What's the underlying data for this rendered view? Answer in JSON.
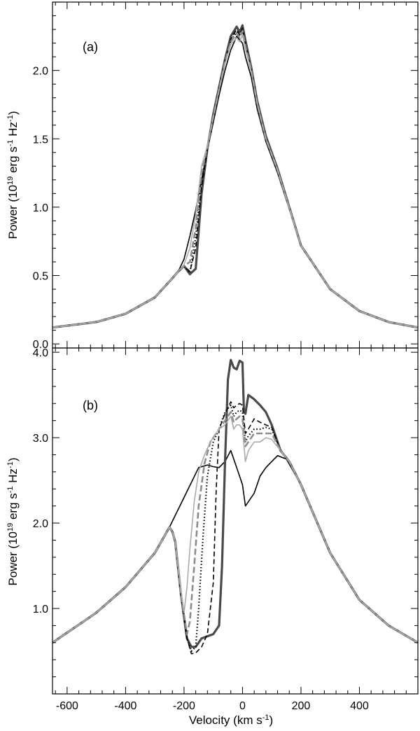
{
  "figure": {
    "xlabel_parts": {
      "main": "Velocity (km s",
      "sup": "-1",
      "end": ")"
    },
    "ylabel_parts": {
      "main": "Power (10",
      "sup1": "19",
      "mid": " erg s",
      "sup2": "-1",
      "mid2": " Hz",
      "sup3": "-1",
      "end": ")"
    }
  },
  "chart_data": [
    {
      "type": "line",
      "panel_label": "(a)",
      "xlabel": "",
      "ylabel": "Power (10^19 erg s^-1 Hz^-1)",
      "xlim": [
        -650,
        600
      ],
      "ylim": [
        -0.03,
        2.5
      ],
      "xticks": [
        -600,
        -400,
        -200,
        0,
        200,
        400
      ],
      "yticks": [
        0.0,
        0.5,
        1.0,
        1.5,
        2.0
      ],
      "ytick_labels": [
        "0.0",
        "0.5",
        "1.0",
        "1.5",
        "2.0"
      ],
      "grid": false,
      "series": [
        {
          "style": "thin-black",
          "x": [
            -650,
            -500,
            -400,
            -300,
            -240,
            -220,
            -200,
            -180,
            -160,
            -140,
            -120,
            -100,
            -80,
            -60,
            -40,
            -20,
            0,
            10,
            30,
            50,
            80,
            120,
            200,
            300,
            400,
            500,
            600
          ],
          "y": [
            0.12,
            0.16,
            0.22,
            0.34,
            0.48,
            0.53,
            0.62,
            0.79,
            0.98,
            1.2,
            1.42,
            1.62,
            1.82,
            2.0,
            2.15,
            2.25,
            2.2,
            2.1,
            1.95,
            1.72,
            1.48,
            1.25,
            0.72,
            0.4,
            0.24,
            0.16,
            0.12
          ]
        },
        {
          "style": "thick-dark-gray",
          "x": [
            -650,
            -500,
            -400,
            -300,
            -240,
            -220,
            -200,
            -180,
            -160,
            -140,
            -120,
            -100,
            -80,
            -60,
            -40,
            -20,
            -10,
            0,
            10,
            30,
            50,
            80,
            120,
            200,
            300,
            400,
            500,
            600
          ],
          "y": [
            0.12,
            0.16,
            0.22,
            0.34,
            0.48,
            0.53,
            0.57,
            0.51,
            0.55,
            1.1,
            1.43,
            1.68,
            1.88,
            2.08,
            2.25,
            2.32,
            2.28,
            2.33,
            2.22,
            2.02,
            1.78,
            1.52,
            1.28,
            0.72,
            0.4,
            0.24,
            0.16,
            0.12
          ]
        },
        {
          "style": "dashed-black",
          "x": [
            -650,
            -500,
            -400,
            -300,
            -240,
            -220,
            -200,
            -180,
            -160,
            -140,
            -120,
            -100,
            -80,
            -60,
            -40,
            -20,
            -10,
            0,
            10,
            30,
            50,
            80,
            120,
            200,
            300,
            400,
            500,
            600
          ],
          "y": [
            0.12,
            0.16,
            0.22,
            0.34,
            0.48,
            0.53,
            0.57,
            0.53,
            0.7,
            1.15,
            1.42,
            1.66,
            1.86,
            2.06,
            2.23,
            2.3,
            2.26,
            2.31,
            2.2,
            2.0,
            1.76,
            1.5,
            1.27,
            0.72,
            0.4,
            0.24,
            0.16,
            0.12
          ]
        },
        {
          "style": "dotted-black",
          "x": [
            -650,
            -500,
            -400,
            -300,
            -240,
            -220,
            -200,
            -180,
            -160,
            -140,
            -120,
            -100,
            -80,
            -60,
            -40,
            -20,
            -10,
            0,
            10,
            30,
            50,
            80,
            120,
            200,
            300,
            400,
            500,
            600
          ],
          "y": [
            0.12,
            0.16,
            0.22,
            0.34,
            0.48,
            0.53,
            0.57,
            0.52,
            0.78,
            1.2,
            1.43,
            1.66,
            1.86,
            2.06,
            2.22,
            2.28,
            2.25,
            2.3,
            2.19,
            2.0,
            1.76,
            1.5,
            1.27,
            0.72,
            0.4,
            0.24,
            0.16,
            0.12
          ]
        },
        {
          "style": "dashed-gray",
          "x": [
            -650,
            -500,
            -400,
            -300,
            -240,
            -220,
            -200,
            -180,
            -160,
            -140,
            -120,
            -100,
            -80,
            -60,
            -40,
            -20,
            -10,
            0,
            10,
            30,
            50,
            80,
            120,
            200,
            300,
            400,
            500,
            600
          ],
          "y": [
            0.12,
            0.16,
            0.22,
            0.34,
            0.48,
            0.53,
            0.57,
            0.6,
            0.85,
            1.25,
            1.44,
            1.66,
            1.86,
            2.06,
            2.21,
            2.27,
            2.24,
            2.29,
            2.18,
            2.0,
            1.76,
            1.5,
            1.27,
            0.72,
            0.4,
            0.24,
            0.16,
            0.12
          ]
        },
        {
          "style": "thin-light-gray",
          "x": [
            -650,
            -500,
            -400,
            -300,
            -240,
            -220,
            -200,
            -180,
            -160,
            -140,
            -120,
            -100,
            -80,
            -60,
            -40,
            -20,
            -10,
            0,
            10,
            30,
            50,
            80,
            120,
            200,
            300,
            400,
            500,
            600
          ],
          "y": [
            0.12,
            0.16,
            0.22,
            0.34,
            0.48,
            0.53,
            0.58,
            0.7,
            0.95,
            1.3,
            1.45,
            1.66,
            1.86,
            2.05,
            2.19,
            2.24,
            2.21,
            2.26,
            2.16,
            1.99,
            1.76,
            1.5,
            1.27,
            0.72,
            0.4,
            0.24,
            0.16,
            0.12
          ]
        }
      ]
    },
    {
      "type": "line",
      "panel_label": "(b)",
      "xlabel": "Velocity (km s^-1)",
      "ylabel": "Power (10^19 erg s^-1 Hz^-1)",
      "xlim": [
        -650,
        600
      ],
      "ylim": [
        0.0,
        4.05
      ],
      "xticks": [
        -600,
        -400,
        -200,
        0,
        200,
        400
      ],
      "yticks": [
        1.0,
        2.0,
        3.0,
        4.0
      ],
      "ytick_labels": [
        "1.0",
        "2.0",
        "3.0",
        "4.0"
      ],
      "grid": false,
      "series": [
        {
          "style": "thin-black",
          "x": [
            -650,
            -500,
            -400,
            -300,
            -250,
            -200,
            -150,
            -120,
            -100,
            -80,
            -60,
            -40,
            -20,
            0,
            10,
            20,
            40,
            60,
            80,
            100,
            120,
            150,
            200,
            300,
            400,
            500,
            600
          ],
          "y": [
            0.6,
            0.95,
            1.25,
            1.65,
            1.95,
            2.3,
            2.65,
            2.68,
            2.66,
            2.65,
            2.72,
            2.85,
            2.65,
            2.45,
            2.2,
            2.25,
            2.35,
            2.55,
            2.65,
            2.72,
            2.79,
            2.75,
            2.45,
            1.65,
            1.1,
            0.8,
            0.6
          ]
        },
        {
          "style": "thick-dark-gray",
          "x": [
            -650,
            -500,
            -400,
            -300,
            -250,
            -240,
            -230,
            -210,
            -190,
            -175,
            -160,
            -140,
            -100,
            -80,
            -70,
            -60,
            -50,
            -40,
            -30,
            -20,
            -10,
            0,
            5,
            10,
            20,
            40,
            60,
            80,
            100,
            130,
            160,
            200,
            300,
            400,
            500,
            600
          ],
          "y": [
            0.6,
            0.95,
            1.25,
            1.65,
            1.95,
            1.9,
            1.78,
            1.15,
            0.65,
            0.55,
            0.55,
            0.65,
            0.7,
            0.8,
            1.5,
            2.7,
            3.68,
            3.91,
            3.82,
            3.8,
            3.9,
            3.88,
            3.3,
            3.28,
            3.5,
            3.45,
            3.38,
            3.3,
            3.15,
            2.85,
            2.72,
            2.45,
            1.65,
            1.1,
            0.8,
            0.6
          ]
        },
        {
          "style": "dashed-black",
          "x": [
            -650,
            -500,
            -400,
            -300,
            -250,
            -240,
            -230,
            -210,
            -190,
            -175,
            -160,
            -140,
            -120,
            -100,
            -90,
            -80,
            -60,
            -40,
            -30,
            -20,
            -10,
            0,
            10,
            20,
            40,
            60,
            80,
            100,
            130,
            160,
            200,
            300,
            400,
            500,
            600
          ],
          "y": [
            0.6,
            0.95,
            1.25,
            1.65,
            1.95,
            1.9,
            1.78,
            1.15,
            0.65,
            0.47,
            0.48,
            0.55,
            0.7,
            1.3,
            2.4,
            3.1,
            3.28,
            3.42,
            3.35,
            3.38,
            3.4,
            3.38,
            3.05,
            3.1,
            3.22,
            3.18,
            3.15,
            3.12,
            2.85,
            2.72,
            2.45,
            1.65,
            1.1,
            0.8,
            0.6
          ]
        },
        {
          "style": "dotted-black",
          "x": [
            -650,
            -500,
            -400,
            -300,
            -250,
            -240,
            -230,
            -210,
            -190,
            -175,
            -160,
            -150,
            -135,
            -120,
            -100,
            -80,
            -60,
            -40,
            -30,
            -20,
            -10,
            0,
            10,
            20,
            40,
            60,
            80,
            100,
            130,
            160,
            200,
            300,
            400,
            500,
            600
          ],
          "y": [
            0.6,
            0.95,
            1.25,
            1.65,
            1.95,
            1.9,
            1.78,
            1.15,
            0.65,
            0.5,
            0.55,
            1.0,
            1.85,
            2.55,
            2.95,
            3.1,
            3.3,
            3.38,
            3.25,
            3.3,
            3.32,
            3.3,
            2.95,
            3.02,
            3.1,
            3.1,
            3.12,
            3.1,
            2.85,
            2.72,
            2.45,
            1.65,
            1.1,
            0.8,
            0.6
          ]
        },
        {
          "style": "dashed-gray",
          "x": [
            -650,
            -500,
            -400,
            -300,
            -250,
            -240,
            -230,
            -210,
            -190,
            -180,
            -165,
            -150,
            -130,
            -110,
            -100,
            -80,
            -60,
            -40,
            -30,
            -20,
            -10,
            0,
            10,
            20,
            40,
            60,
            80,
            100,
            130,
            160,
            200,
            300,
            400,
            500,
            600
          ],
          "y": [
            0.6,
            0.95,
            1.25,
            1.65,
            1.95,
            1.9,
            1.78,
            1.15,
            0.7,
            0.85,
            1.5,
            2.2,
            2.7,
            2.95,
            3.0,
            3.1,
            3.2,
            3.3,
            3.18,
            3.22,
            3.25,
            3.22,
            2.9,
            2.95,
            3.05,
            3.05,
            3.05,
            3.05,
            2.85,
            2.72,
            2.45,
            1.65,
            1.1,
            0.8,
            0.6
          ]
        },
        {
          "style": "thin-light-gray",
          "x": [
            -650,
            -500,
            -400,
            -300,
            -250,
            -240,
            -230,
            -210,
            -200,
            -190,
            -180,
            -165,
            -150,
            -130,
            -110,
            -100,
            -80,
            -60,
            -40,
            -30,
            -20,
            -10,
            0,
            10,
            20,
            40,
            60,
            80,
            100,
            130,
            160,
            200,
            300,
            400,
            500,
            600
          ],
          "y": [
            0.6,
            0.95,
            1.25,
            1.65,
            1.95,
            1.9,
            1.78,
            1.2,
            0.95,
            1.25,
            1.7,
            2.25,
            2.6,
            2.8,
            2.95,
            3.0,
            3.1,
            3.15,
            3.25,
            3.1,
            3.15,
            3.15,
            3.1,
            2.72,
            2.85,
            2.95,
            2.95,
            3.0,
            2.98,
            2.85,
            2.72,
            2.45,
            1.65,
            1.1,
            0.8,
            0.6
          ]
        }
      ]
    }
  ]
}
